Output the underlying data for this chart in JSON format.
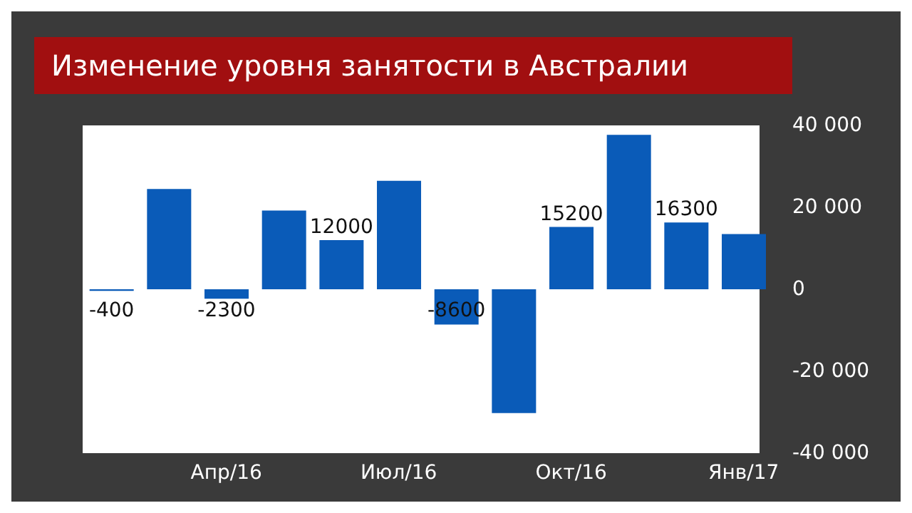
{
  "chart_data": {
    "type": "bar",
    "title": "Изменение уровня занятости в Австралии",
    "categories": [
      null,
      null,
      "Апр/16",
      null,
      null,
      "Июл/16",
      null,
      null,
      "Окт/16",
      null,
      null,
      "Янв/17"
    ],
    "values": [
      -400,
      24500,
      -2300,
      19200,
      12000,
      26500,
      -8600,
      -30200,
      15200,
      37700,
      16300,
      13500
    ],
    "value_labels": [
      "-400",
      null,
      "-2300",
      null,
      "12000",
      null,
      "-8600",
      null,
      "15200",
      null,
      "16300",
      null
    ],
    "color": "#0a5bb8",
    "ylim": [
      -40000,
      40000
    ],
    "yticks": [
      {
        "value": -40000,
        "label": "-40 000"
      },
      {
        "value": -20000,
        "label": "-20 000"
      },
      0,
      {
        "value": 20000,
        "label": "20 000"
      },
      {
        "value": 40000,
        "label": "40 000"
      }
    ],
    "grid": false
  }
}
